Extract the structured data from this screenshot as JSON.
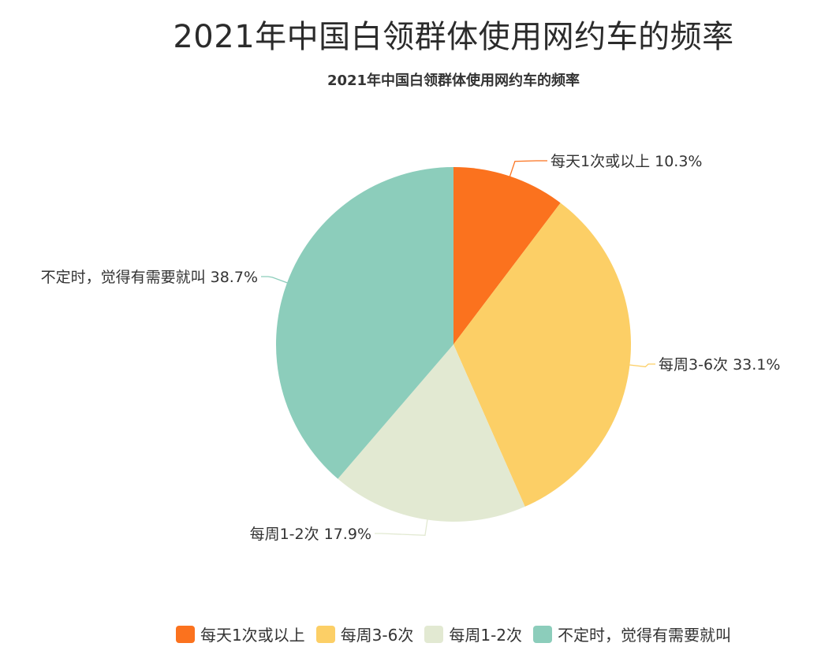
{
  "header": {
    "title": "2021年中国白领群体使用网约车的频率"
  },
  "chart_data": {
    "type": "pie",
    "title": "2021年中国白领群体使用网约车的频率",
    "categories": [
      "每天1次或以上",
      "每周3-6次",
      "每周1-2次",
      "不定时，觉得有需要就叫"
    ],
    "values": [
      10.3,
      33.1,
      17.9,
      38.7
    ],
    "unit": "%",
    "data_labels": [
      "每天1次或以上 10.3%",
      "每周3-6次 33.1%",
      "每周1-2次 17.9%",
      "不定时，觉得有需要就叫 38.7%"
    ],
    "colors": [
      "#fb721e",
      "#fccf66",
      "#e2e9d2",
      "#8ccdbb"
    ],
    "legend_position": "bottom"
  }
}
